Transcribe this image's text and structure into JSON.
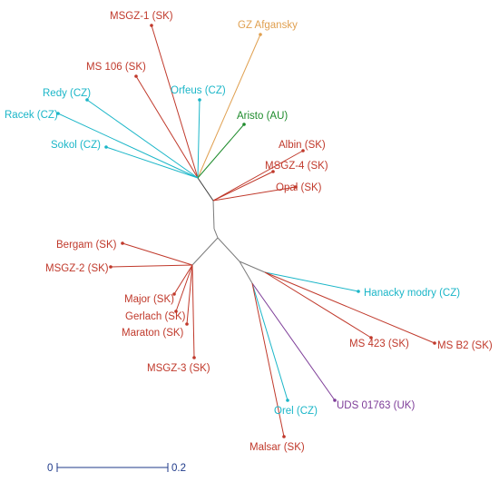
{
  "colors": {
    "sk": "#c0392b",
    "cz": "#1bb6c8",
    "au": "#1e8b2c",
    "uk": "#7d3c98",
    "afgan": "#e0a050",
    "internal": "#7a7a7a",
    "scale": "#1f3a8a"
  },
  "tree": {
    "leaves": [
      {
        "id": "msgz1",
        "label": "MSGZ-1 (SK)",
        "group": "sk"
      },
      {
        "id": "gzafg",
        "label": "GZ Afgansky",
        "group": "afgan"
      },
      {
        "id": "ms106",
        "label": "MS 106 (SK)",
        "group": "sk"
      },
      {
        "id": "orfeus",
        "label": "Orfeus (CZ)",
        "group": "cz"
      },
      {
        "id": "redy",
        "label": "Redy (CZ)",
        "group": "cz"
      },
      {
        "id": "racek",
        "label": "Racek (CZ)",
        "group": "cz"
      },
      {
        "id": "aristo",
        "label": "Aristo (AU)",
        "group": "au"
      },
      {
        "id": "sokol",
        "label": "Sokol (CZ)",
        "group": "cz"
      },
      {
        "id": "albin",
        "label": "Albin (SK)",
        "group": "sk"
      },
      {
        "id": "msgz4",
        "label": "MSGZ-4 (SK)",
        "group": "sk"
      },
      {
        "id": "opal",
        "label": "Opal (SK)",
        "group": "sk"
      },
      {
        "id": "bergam",
        "label": "Bergam (SK)",
        "group": "sk"
      },
      {
        "id": "msgz2",
        "label": "MSGZ-2 (SK)",
        "group": "sk"
      },
      {
        "id": "hanacky",
        "label": "Hanacky modry (CZ)",
        "group": "cz"
      },
      {
        "id": "major",
        "label": "Major (SK)",
        "group": "sk"
      },
      {
        "id": "gerlach",
        "label": "Gerlach (SK)",
        "group": "sk"
      },
      {
        "id": "maraton",
        "label": "Maraton (SK)",
        "group": "sk"
      },
      {
        "id": "ms423",
        "label": "MS 423 (SK)",
        "group": "sk"
      },
      {
        "id": "msb2",
        "label": "MS B2 (SK)",
        "group": "sk"
      },
      {
        "id": "msgz3",
        "label": "MSGZ-3 (SK)",
        "group": "sk"
      },
      {
        "id": "uds",
        "label": "UDS 01763 (UK)",
        "group": "uk"
      },
      {
        "id": "orel",
        "label": "Orel (CZ)",
        "group": "cz"
      },
      {
        "id": "malsar",
        "label": "Malsar (SK)",
        "group": "sk"
      }
    ]
  },
  "scale_bar": {
    "start_label": "0",
    "end_label": "0.2"
  }
}
